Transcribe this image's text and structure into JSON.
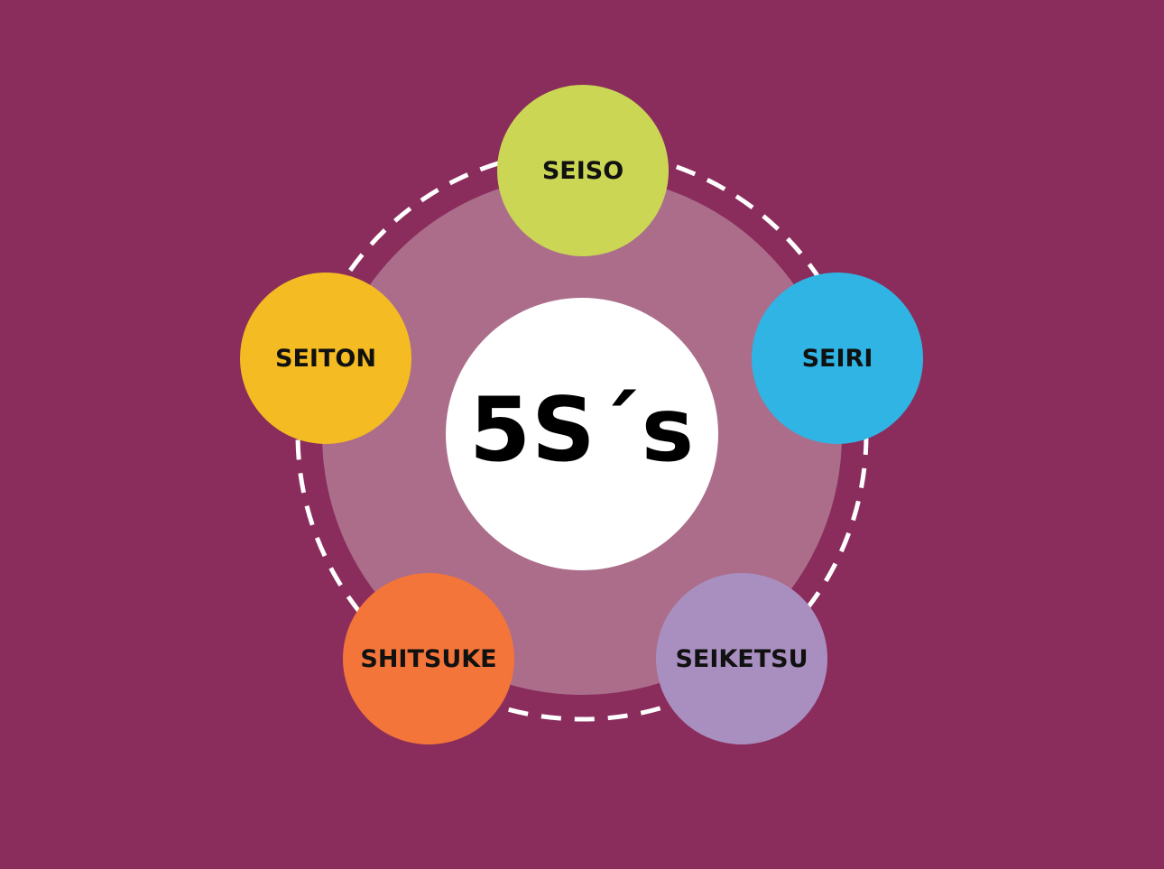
{
  "diagram": {
    "center_label": "5S´s",
    "nodes": [
      {
        "label": "SEISO",
        "color": "#cbd655"
      },
      {
        "label": "SEIRI",
        "color": "#30b4e4"
      },
      {
        "label": "SEIKETSU",
        "color": "#a98fbf"
      },
      {
        "label": "SHITSUKE",
        "color": "#f3753a"
      },
      {
        "label": "SEITON",
        "color": "#f4bb23"
      }
    ]
  },
  "colors": {
    "background": "#8a2d5c",
    "ring": "#ab6d8a",
    "center": "#ffffff",
    "dashed_path": "#ffffff"
  }
}
